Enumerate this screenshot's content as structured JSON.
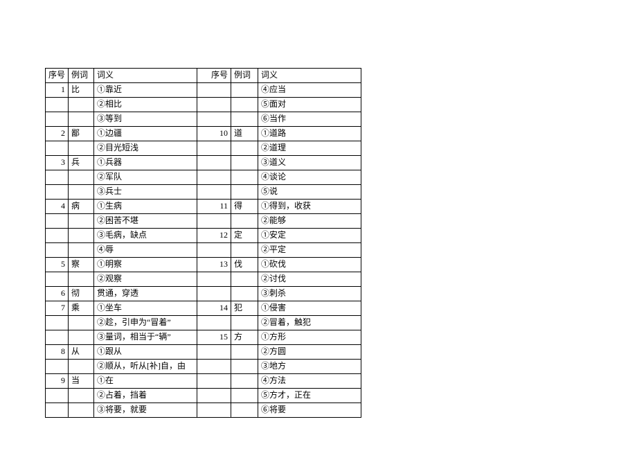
{
  "headers": {
    "seq": "序号",
    "word": "例词",
    "def": "词义",
    "seq2": "序号",
    "word2": "例词",
    "def2": "词义"
  },
  "rows": [
    {
      "seq": "1",
      "word": "比",
      "def": "①靠近",
      "seq2": "",
      "word2": "",
      "def2": "④应当"
    },
    {
      "seq": "",
      "word": "",
      "def": "②相比",
      "seq2": "",
      "word2": "",
      "def2": "⑤面对"
    },
    {
      "seq": "",
      "word": "",
      "def": "③等到",
      "seq2": "",
      "word2": "",
      "def2": "⑥当作"
    },
    {
      "seq": "2",
      "word": "鄙",
      "def": "①边疆",
      "seq2": "10",
      "word2": "道",
      "def2": "①道路"
    },
    {
      "seq": "",
      "word": "",
      "def": "②目光短浅",
      "seq2": "",
      "word2": "",
      "def2": "②道理"
    },
    {
      "seq": "3",
      "word": "兵",
      "def": "①兵器",
      "seq2": "",
      "word2": "",
      "def2": "③道义"
    },
    {
      "seq": "",
      "word": "",
      "def": "②军队",
      "seq2": "",
      "word2": "",
      "def2": "④谈论"
    },
    {
      "seq": "",
      "word": "",
      "def": "③兵士",
      "seq2": "",
      "word2": "",
      "def2": "⑤说"
    },
    {
      "seq": "4",
      "word": "病",
      "def": "①生病",
      "seq2": "11",
      "word2": "得",
      "def2": "①得到，收获"
    },
    {
      "seq": "",
      "word": "",
      "def": "②困苦不堪",
      "seq2": "",
      "word2": "",
      "def2": "②能够"
    },
    {
      "seq": "",
      "word": "",
      "def": "③毛病，缺点",
      "seq2": "12",
      "word2": "定",
      "def2": "①安定"
    },
    {
      "seq": "",
      "word": "",
      "def": "④辱",
      "seq2": "",
      "word2": "",
      "def2": "②平定"
    },
    {
      "seq": "5",
      "word": "察",
      "def": "①明察",
      "seq2": "13",
      "word2": "伐",
      "def2": "①砍伐"
    },
    {
      "seq": "",
      "word": "",
      "def": "②观察",
      "seq2": "",
      "word2": "",
      "def2": "②讨伐"
    },
    {
      "seq": "6",
      "word": "彻",
      "def": "贯通，穿透",
      "seq2": "",
      "word2": "",
      "def2": "③刺杀"
    },
    {
      "seq": "7",
      "word": "乘",
      "def": "①坐车",
      "seq2": "14",
      "word2": "犯",
      "def2": "①侵害"
    },
    {
      "seq": "",
      "word": "",
      "def": "②趁，引申为“冒着”",
      "seq2": "",
      "word2": "",
      "def2": "②冒着，触犯"
    },
    {
      "seq": "",
      "word": "",
      "def": "③量词，相当于“辆”",
      "seq2": "15",
      "word2": "方",
      "def2": "①方形"
    },
    {
      "seq": "8",
      "word": "从",
      "def": "①跟从",
      "seq2": "",
      "word2": "",
      "def2": "②方圆"
    },
    {
      "seq": "",
      "word": "",
      "def": "②顺从，听从[补]自，由",
      "seq2": "",
      "word2": "",
      "def2": "③地方"
    },
    {
      "seq": "9",
      "word": "当",
      "def": "①在",
      "seq2": "",
      "word2": "",
      "def2": "④方法"
    },
    {
      "seq": "",
      "word": "",
      "def": "②占着，挡着",
      "seq2": "",
      "word2": "",
      "def2": "⑤方才，正在"
    },
    {
      "seq": "",
      "word": "",
      "def": "③将要，就要",
      "seq2": "",
      "word2": "",
      "def2": "⑥将要"
    }
  ]
}
